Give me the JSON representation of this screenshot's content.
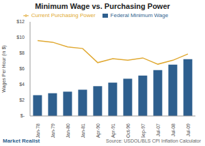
{
  "chart_data": {
    "type": "bar",
    "title": "Minimum Wage vs. Purchasing Power",
    "y_label": "Wages Per Hour (in $)",
    "annotations": [
      "Market Realist",
      "Source: USDOL/BLS CPI Inflation Calculator"
    ],
    "categories": [
      "Jan-78",
      "Jan-79",
      "Jan-80",
      "Jan-81",
      "Apr-90",
      "Apr-91",
      "Oct-96",
      "Sep-97",
      "Jul-07",
      "Jul-08",
      "Jul-09"
    ],
    "series": [
      {
        "name": "Federal Minimum Wage",
        "type": "bar",
        "color": "#2e5f8e",
        "values": [
          2.65,
          2.9,
          3.1,
          3.35,
          3.8,
          4.25,
          4.75,
          5.15,
          5.85,
          6.55,
          7.25
        ]
      },
      {
        "name": "Current Purchasing Power",
        "type": "line",
        "color": "#e0a830",
        "marker": "none",
        "values": [
          9.6,
          9.4,
          8.8,
          8.6,
          6.8,
          7.3,
          7.1,
          7.4,
          6.6,
          7.1,
          7.9
        ]
      }
    ],
    "ylim": [
      0,
      12
    ],
    "yticks": [
      {
        "value": 0,
        "label": "$-"
      },
      {
        "value": 2,
        "label": "$2"
      },
      {
        "value": 4,
        "label": "$4"
      },
      {
        "value": 6,
        "label": "$6"
      },
      {
        "value": 8,
        "label": "$8"
      },
      {
        "value": 10,
        "label": "$10"
      },
      {
        "value": 12,
        "label": "$12"
      }
    ],
    "grid": false,
    "legend": "top"
  }
}
